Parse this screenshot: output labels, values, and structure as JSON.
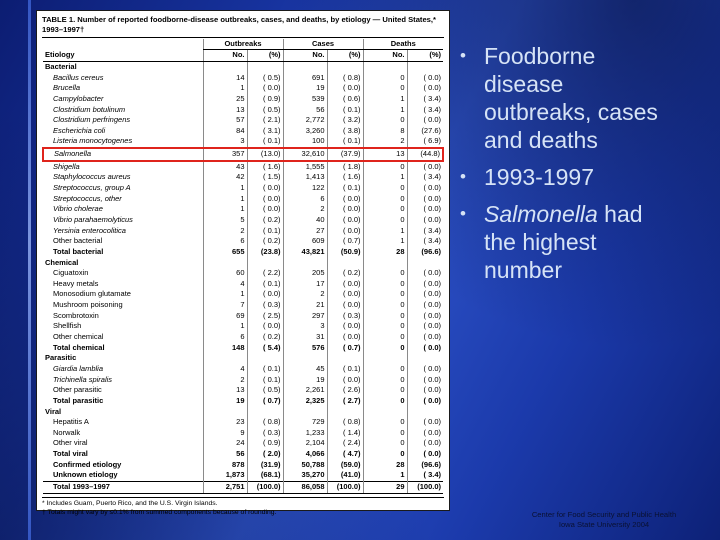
{
  "slide": {
    "bullets": [
      {
        "italic": "",
        "text": "Foodborne disease outbreaks, cases and deaths"
      },
      {
        "italic": "",
        "text": "1993-1997"
      },
      {
        "italic": "Salmonella",
        "text": " had the highest number"
      }
    ],
    "credit": {
      "line1": "Center for Food Security and Public Health",
      "line2": "Iowa State University 2004"
    },
    "colors": {
      "background_blue": "#1b3aab",
      "bullet_text": "#d6e3f6",
      "highlight_red": "#df241c"
    }
  },
  "table": {
    "title": "TABLE 1. Number of reported foodborne-disease outbreaks, cases, and deaths, by etiology — United States,* 1993–1997†",
    "col_groups": [
      "Outbreaks",
      "Cases",
      "Deaths"
    ],
    "col_headers": [
      "Etiology",
      "No.",
      "(%)",
      "No.",
      "(%)",
      "No.",
      "(%)"
    ],
    "rows": [
      {
        "label": "Bacterial",
        "style": "section"
      },
      {
        "label": "Bacillus cereus",
        "style": "species",
        "values": [
          "14",
          "( 0.5)",
          "691",
          "( 0.8)",
          "0",
          "( 0.0)"
        ]
      },
      {
        "label": "Brucella",
        "style": "species",
        "values": [
          "1",
          "( 0.0)",
          "19",
          "( 0.0)",
          "0",
          "( 0.0)"
        ]
      },
      {
        "label": "Campylobacter",
        "style": "species",
        "values": [
          "25",
          "( 0.9)",
          "539",
          "( 0.6)",
          "1",
          "( 3.4)"
        ]
      },
      {
        "label": "Clostridium botulinum",
        "style": "species",
        "values": [
          "13",
          "( 0.5)",
          "56",
          "( 0.1)",
          "1",
          "( 3.4)"
        ]
      },
      {
        "label": "Clostridium perfringens",
        "style": "species",
        "values": [
          "57",
          "( 2.1)",
          "2,772",
          "( 3.2)",
          "0",
          "( 0.0)"
        ]
      },
      {
        "label": "Escherichia coli",
        "style": "species",
        "values": [
          "84",
          "( 3.1)",
          "3,260",
          "( 3.8)",
          "8",
          "(27.6)"
        ]
      },
      {
        "label": "Listeria monocytogenes",
        "style": "species",
        "values": [
          "3",
          "( 0.1)",
          "100",
          "( 0.1)",
          "2",
          "( 6.9)"
        ]
      },
      {
        "label": "Salmonella",
        "style": "species",
        "highlight": true,
        "values": [
          "357",
          "(13.0)",
          "32,610",
          "(37.9)",
          "13",
          "(44.8)"
        ]
      },
      {
        "label": "Shigella",
        "style": "species",
        "values": [
          "43",
          "( 1.6)",
          "1,555",
          "( 1.8)",
          "0",
          "( 0.0)"
        ]
      },
      {
        "label": "Staphylococcus aureus",
        "style": "species",
        "values": [
          "42",
          "( 1.5)",
          "1,413",
          "( 1.6)",
          "1",
          "( 3.4)"
        ]
      },
      {
        "label": "Streptococcus, group A",
        "style": "species",
        "values": [
          "1",
          "( 0.0)",
          "122",
          "( 0.1)",
          "0",
          "( 0.0)"
        ]
      },
      {
        "label": "Streptococcus, other",
        "style": "species",
        "values": [
          "1",
          "( 0.0)",
          "6",
          "( 0.0)",
          "0",
          "( 0.0)"
        ]
      },
      {
        "label": "Vibrio cholerae",
        "style": "species",
        "values": [
          "1",
          "( 0.0)",
          "2",
          "( 0.0)",
          "0",
          "( 0.0)"
        ]
      },
      {
        "label": "Vibrio parahaemolyticus",
        "style": "species",
        "values": [
          "5",
          "( 0.2)",
          "40",
          "( 0.0)",
          "0",
          "( 0.0)"
        ]
      },
      {
        "label": "Yersinia enterocolitica",
        "style": "species",
        "values": [
          "2",
          "( 0.1)",
          "27",
          "( 0.0)",
          "1",
          "( 3.4)"
        ]
      },
      {
        "label": "Other bacterial",
        "style": "item",
        "values": [
          "6",
          "( 0.2)",
          "609",
          "( 0.7)",
          "1",
          "( 3.4)"
        ]
      },
      {
        "label": "Total bacterial",
        "style": "total",
        "values": [
          "655",
          "(23.8)",
          "43,821",
          "(50.9)",
          "28",
          "(96.6)"
        ]
      },
      {
        "label": "Chemical",
        "style": "section"
      },
      {
        "label": "Ciguatoxin",
        "style": "item",
        "values": [
          "60",
          "( 2.2)",
          "205",
          "( 0.2)",
          "0",
          "( 0.0)"
        ]
      },
      {
        "label": "Heavy metals",
        "style": "item",
        "values": [
          "4",
          "( 0.1)",
          "17",
          "( 0.0)",
          "0",
          "( 0.0)"
        ]
      },
      {
        "label": "Monosodium glutamate",
        "style": "item",
        "values": [
          "1",
          "( 0.0)",
          "2",
          "( 0.0)",
          "0",
          "( 0.0)"
        ]
      },
      {
        "label": "Mushroom poisoning",
        "style": "item",
        "values": [
          "7",
          "( 0.3)",
          "21",
          "( 0.0)",
          "0",
          "( 0.0)"
        ]
      },
      {
        "label": "Scombrotoxin",
        "style": "item",
        "values": [
          "69",
          "( 2.5)",
          "297",
          "( 0.3)",
          "0",
          "( 0.0)"
        ]
      },
      {
        "label": "Shellfish",
        "style": "item",
        "values": [
          "1",
          "( 0.0)",
          "3",
          "( 0.0)",
          "0",
          "( 0.0)"
        ]
      },
      {
        "label": "Other chemical",
        "style": "item",
        "values": [
          "6",
          "( 0.2)",
          "31",
          "( 0.0)",
          "0",
          "( 0.0)"
        ]
      },
      {
        "label": "Total chemical",
        "style": "total",
        "values": [
          "148",
          "( 5.4)",
          "576",
          "( 0.7)",
          "0",
          "( 0.0)"
        ]
      },
      {
        "label": "Parasitic",
        "style": "section"
      },
      {
        "label": "Giardia lamblia",
        "style": "species",
        "values": [
          "4",
          "( 0.1)",
          "45",
          "( 0.1)",
          "0",
          "( 0.0)"
        ]
      },
      {
        "label": "Trichinella spiralis",
        "style": "species",
        "values": [
          "2",
          "( 0.1)",
          "19",
          "( 0.0)",
          "0",
          "( 0.0)"
        ]
      },
      {
        "label": "Other parasitic",
        "style": "item",
        "values": [
          "13",
          "( 0.5)",
          "2,261",
          "( 2.6)",
          "0",
          "( 0.0)"
        ]
      },
      {
        "label": "Total parasitic",
        "style": "total",
        "values": [
          "19",
          "( 0.7)",
          "2,325",
          "( 2.7)",
          "0",
          "( 0.0)"
        ]
      },
      {
        "label": "Viral",
        "style": "section"
      },
      {
        "label": "Hepatitis A",
        "style": "item",
        "values": [
          "23",
          "( 0.8)",
          "729",
          "( 0.8)",
          "0",
          "( 0.0)"
        ]
      },
      {
        "label": "Norwalk",
        "style": "item",
        "values": [
          "9",
          "( 0.3)",
          "1,233",
          "( 1.4)",
          "0",
          "( 0.0)"
        ]
      },
      {
        "label": "Other viral",
        "style": "item",
        "values": [
          "24",
          "( 0.9)",
          "2,104",
          "( 2.4)",
          "0",
          "( 0.0)"
        ]
      },
      {
        "label": "Total viral",
        "style": "total",
        "values": [
          "56",
          "( 2.0)",
          "4,066",
          "( 4.7)",
          "0",
          "( 0.0)"
        ]
      },
      {
        "label": "Confirmed etiology",
        "style": "total",
        "values": [
          "878",
          "(31.9)",
          "50,788",
          "(59.0)",
          "28",
          "(96.6)"
        ]
      },
      {
        "label": "Unknown etiology",
        "style": "total",
        "values": [
          "1,873",
          "(68.1)",
          "35,270",
          "(41.0)",
          "1",
          "( 3.4)"
        ]
      },
      {
        "label": "Total 1993–1997",
        "style": "grand",
        "values": [
          "2,751",
          "(100.0)",
          "86,058",
          "(100.0)",
          "29",
          "(100.0)"
        ]
      }
    ],
    "footnotes": [
      "* Includes Guam, Puerto Rico, and the U.S. Virgin Islands.",
      "† Totals might vary by ≤0.1% from summed components because of rounding."
    ]
  }
}
